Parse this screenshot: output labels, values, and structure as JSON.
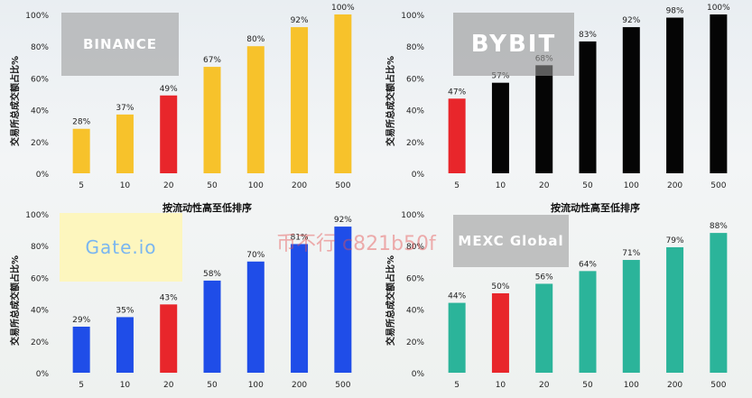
{
  "xlabel": "按流动性高至低排序",
  "watermark": "币不行 c821b50f",
  "chart_data": [
    {
      "type": "bar",
      "logo": "BINANCE",
      "categories": [
        "5",
        "10",
        "20",
        "50",
        "100",
        "200",
        "500"
      ],
      "values": [
        28,
        37,
        49,
        67,
        80,
        92,
        100
      ],
      "value_labels": [
        "28%",
        "37%",
        "49%",
        "67%",
        "80%",
        "92%",
        "100%"
      ],
      "colors": [
        "#f7c22b",
        "#f7c22b",
        "#e8262b",
        "#f7c22b",
        "#f7c22b",
        "#f7c22b",
        "#f7c22b"
      ],
      "ylabel": "交易所总成交额占比%",
      "yticks": [
        "0%",
        "20%",
        "40%",
        "60%",
        "80%",
        "100%"
      ],
      "ylim": [
        0,
        100
      ]
    },
    {
      "type": "bar",
      "logo": "BYBIT",
      "categories": [
        "5",
        "10",
        "20",
        "50",
        "100",
        "200",
        "500"
      ],
      "values": [
        47,
        57,
        68,
        83,
        92,
        98,
        100
      ],
      "value_labels": [
        "47%",
        "57%",
        "68%",
        "83%",
        "92%",
        "98%",
        "100%"
      ],
      "colors": [
        "#e8262b",
        "#050505",
        "#050505",
        "#050505",
        "#050505",
        "#050505",
        "#050505"
      ],
      "ylabel": "交易所总成交额占比%",
      "yticks": [
        "0%",
        "20%",
        "40%",
        "60%",
        "80%",
        "100%"
      ],
      "ylim": [
        0,
        100
      ]
    },
    {
      "type": "bar",
      "logo": "Gate.io",
      "categories": [
        "5",
        "10",
        "20",
        "50",
        "100",
        "200",
        "500"
      ],
      "values": [
        29,
        35,
        43,
        58,
        70,
        81,
        92
      ],
      "value_labels": [
        "29%",
        "35%",
        "43%",
        "58%",
        "70%",
        "81%",
        "92%"
      ],
      "colors": [
        "#1f4de8",
        "#1f4de8",
        "#e8262b",
        "#1f4de8",
        "#1f4de8",
        "#1f4de8",
        "#1f4de8"
      ],
      "ylabel": "交易所总成交额占比%",
      "yticks": [
        "0%",
        "20%",
        "40%",
        "60%",
        "80%",
        "100%"
      ],
      "ylim": [
        0,
        100
      ]
    },
    {
      "type": "bar",
      "logo": "MEXC Global",
      "categories": [
        "5",
        "10",
        "20",
        "50",
        "100",
        "200",
        "500"
      ],
      "values": [
        44,
        50,
        56,
        64,
        71,
        79,
        88
      ],
      "value_labels": [
        "44%",
        "50%",
        "56%",
        "64%",
        "71%",
        "79%",
        "88%"
      ],
      "colors": [
        "#2bb49a",
        "#e8262b",
        "#2bb49a",
        "#2bb49a",
        "#2bb49a",
        "#2bb49a",
        "#2bb49a"
      ],
      "ylabel": "交易所总成交额占比%",
      "yticks": [
        "0%",
        "20%",
        "40%",
        "60%",
        "80%",
        "100%"
      ],
      "ylim": [
        0,
        100
      ]
    }
  ]
}
